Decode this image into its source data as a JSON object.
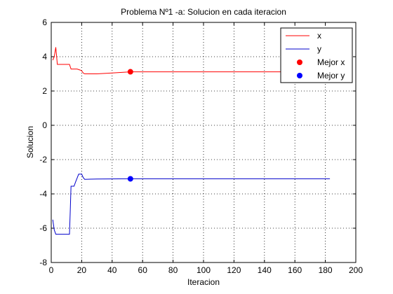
{
  "chart_data": {
    "type": "line",
    "title": "Problema Nº1 -a: Solucion en cada iteracion",
    "xlabel": "Iteracion",
    "ylabel": "Solucion",
    "xlim": [
      0,
      200
    ],
    "ylim": [
      -8,
      6
    ],
    "grid": true,
    "legend_position": "top-right",
    "x_ticks": [
      0,
      20,
      40,
      60,
      80,
      100,
      120,
      140,
      160,
      180,
      200
    ],
    "y_ticks": [
      -8,
      -6,
      -4,
      -2,
      0,
      2,
      4,
      6
    ],
    "x_tick_labels": [
      "0",
      "20",
      "40",
      "60",
      "80",
      "100",
      "120",
      "140",
      "160",
      "180",
      "200"
    ],
    "y_tick_labels": [
      "-8",
      "-6",
      "-4",
      "-2",
      "0",
      "2",
      "4",
      "6"
    ],
    "series": [
      {
        "name": "x",
        "color": "#ff0000",
        "kind": "line",
        "x": [
          1,
          2,
          3,
          4,
          8,
          12,
          13,
          17,
          18,
          19,
          20,
          21,
          22,
          30,
          40,
          52,
          60,
          100,
          140,
          183
        ],
        "y": [
          3.8,
          4.0,
          4.55,
          3.55,
          3.55,
          3.55,
          3.28,
          3.28,
          3.25,
          3.22,
          3.18,
          3.05,
          3.0,
          3.0,
          3.05,
          3.12,
          3.12,
          3.12,
          3.12,
          3.12
        ]
      },
      {
        "name": "y",
        "color": "#0000cc",
        "kind": "line",
        "x": [
          1,
          2,
          3,
          12,
          12.5,
          13,
          14,
          15,
          16,
          18,
          20,
          21,
          22,
          30,
          52,
          100,
          140,
          183
        ],
        "y": [
          -5.5,
          -6.1,
          -6.35,
          -6.35,
          -5.0,
          -3.55,
          -3.55,
          -3.55,
          -3.3,
          -2.85,
          -2.85,
          -3.05,
          -3.15,
          -3.13,
          -3.12,
          -3.12,
          -3.12,
          -3.12
        ]
      },
      {
        "name": "Mejor x",
        "color": "#ff0000",
        "kind": "marker",
        "x": [
          52
        ],
        "y": [
          3.12
        ]
      },
      {
        "name": "Mejor y",
        "color": "#0000ff",
        "kind": "marker",
        "x": [
          52
        ],
        "y": [
          -3.12
        ]
      }
    ]
  }
}
